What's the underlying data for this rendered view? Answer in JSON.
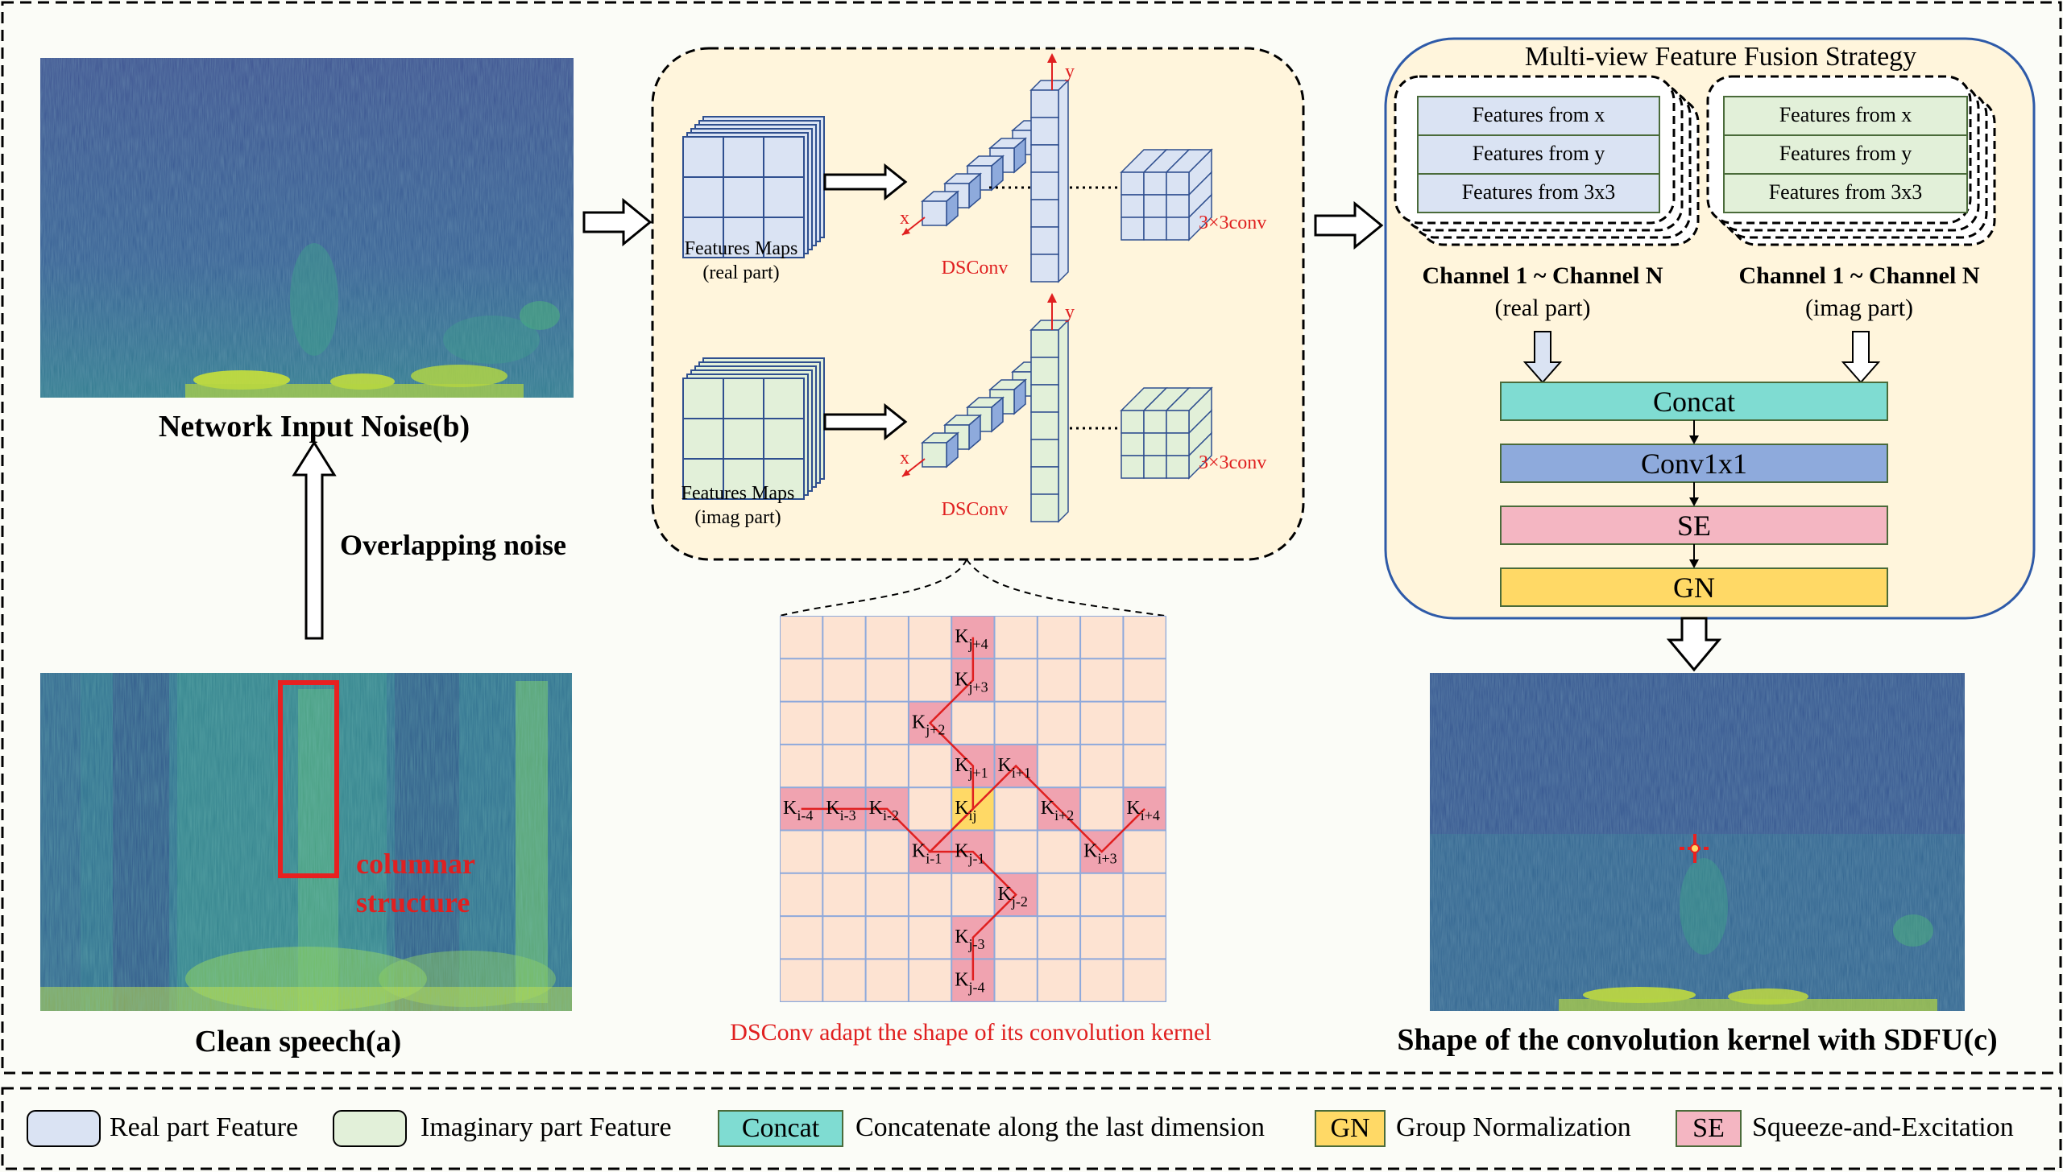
{
  "panel_a": {
    "caption": "Clean speech(a)",
    "annotation_line1": "columnar",
    "annotation_line2": "structure"
  },
  "panel_b": {
    "caption": "Network Input Noise(b)",
    "arrow_label": "Overlapping noise"
  },
  "panel_c": {
    "caption": "Shape of the convolution kernel with SDFU(c)"
  },
  "dsconv": {
    "real": {
      "maps_label_1": "Features Maps",
      "maps_label_2": "(real part)",
      "op_label": "DSConv",
      "conv_label": "3×3conv",
      "axis_x": "x",
      "axis_y": "y"
    },
    "imag": {
      "maps_label_1": "Features Maps",
      "maps_label_2": "(imag part)",
      "op_label": "DSConv",
      "conv_label": "3×3conv",
      "axis_x": "x",
      "axis_y": "y"
    },
    "kernel_caption": "DSConv adapt the shape of its convolution kernel",
    "kernel_cells": [
      {
        "label": "K",
        "sub": "j+4"
      },
      {
        "label": "K",
        "sub": "j+3"
      },
      {
        "label": "K",
        "sub": "j+2"
      },
      {
        "label": "K",
        "sub": "j+1"
      },
      {
        "label": "K",
        "sub": "i+1"
      },
      {
        "label": "K",
        "sub": "i-4"
      },
      {
        "label": "K",
        "sub": "i-3"
      },
      {
        "label": "K",
        "sub": "i-2"
      },
      {
        "label": "K",
        "sub": "ij"
      },
      {
        "label": "K",
        "sub": "i+2"
      },
      {
        "label": "K",
        "sub": "i+4"
      },
      {
        "label": "K",
        "sub": "i-1"
      },
      {
        "label": "K",
        "sub": "j-1"
      },
      {
        "label": "K",
        "sub": "i+3"
      },
      {
        "label": "K",
        "sub": "j-2"
      },
      {
        "label": "K",
        "sub": "j-3"
      },
      {
        "label": "K",
        "sub": "j-4"
      }
    ]
  },
  "fusion": {
    "title": "Multi-view Feature Fusion Strategy",
    "real_features": [
      "Features from x",
      "Features from y",
      "Features from 3x3"
    ],
    "imag_features": [
      "Features from x",
      "Features from y",
      "Features from 3x3"
    ],
    "real_channel": "Channel 1 ~ Channel N",
    "real_part": "(real part)",
    "imag_channel": "Channel 1 ~ Channel N",
    "imag_part": "(imag part)",
    "blocks": [
      {
        "label": "Concat",
        "color": "#7fdcd2"
      },
      {
        "label": "Conv1x1",
        "color": "#8eaadc"
      },
      {
        "label": "SE",
        "color": "#f4b6c2"
      },
      {
        "label": "GN",
        "color": "#ffd966"
      }
    ]
  },
  "legend": {
    "items": [
      {
        "swatch": "",
        "text": "Real part Feature",
        "color": "#dae3f3"
      },
      {
        "swatch": "",
        "text": "Imaginary part Feature",
        "color": "#e2f0d9"
      },
      {
        "swatch": "Concat",
        "text": "Concatenate along the last dimension",
        "color": "#7fdcd2"
      },
      {
        "swatch": "GN",
        "text": "Group Normalization",
        "color": "#ffd966"
      },
      {
        "swatch": "SE",
        "text": "Squeeze-and-Excitation",
        "color": "#f4b6c2"
      }
    ]
  },
  "colors": {
    "real": "#dae3f3",
    "imag": "#e2f0d9",
    "cube_edge": "#2f4f8f",
    "panel_bg": "#fff5dc",
    "kernel_bg": "#fde3d2",
    "kernel_hl": "#f0a3b0",
    "red": "#e02020"
  }
}
